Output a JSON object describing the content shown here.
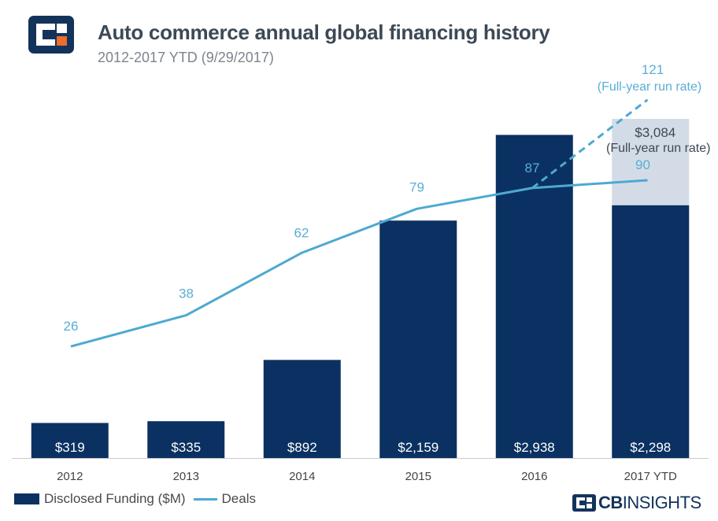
{
  "header": {
    "title": "Auto commerce annual global financing history",
    "subtitle": "2012-2017 YTD (9/29/2017)"
  },
  "brand": {
    "bold": "CB",
    "light": "INSIGHTS"
  },
  "legend": {
    "funding": "Disclosed Funding ($M)",
    "deals": "Deals"
  },
  "colors": {
    "bar": "#0a3161",
    "runrate_bar": "#d3dce6",
    "line": "#4ea9d1",
    "bar_label": "#ffffff",
    "line_label": "#5aaed4"
  },
  "chart_data": {
    "type": "bar",
    "categories": [
      "2012",
      "2013",
      "2014",
      "2015",
      "2016",
      "2017 YTD"
    ],
    "series": [
      {
        "name": "Disclosed Funding ($M)",
        "type": "bar",
        "values": [
          319,
          335,
          892,
          2159,
          2938,
          2298
        ],
        "labels": [
          "$319",
          "$335",
          "$892",
          "$2,159",
          "$2,938",
          "$2,298"
        ]
      },
      {
        "name": "Deals",
        "type": "line",
        "values": [
          26,
          38,
          62,
          79,
          87,
          90
        ],
        "labels": [
          "26",
          "38",
          "62",
          "79",
          "87",
          "90"
        ]
      }
    ],
    "annotations": [
      {
        "category": "2017 YTD",
        "series": "Disclosed Funding ($M)",
        "value": 3084,
        "label": "$3,084",
        "note": "(Full-year run rate)"
      },
      {
        "category": "2017 YTD",
        "series": "Deals",
        "from_category": "2016",
        "value": 121,
        "label": "121",
        "note": "(Full-year run rate)",
        "style": "dashed"
      }
    ],
    "funding_range": [
      0,
      3100
    ],
    "deals_range": [
      0,
      130
    ],
    "legend": "bottom-left"
  }
}
